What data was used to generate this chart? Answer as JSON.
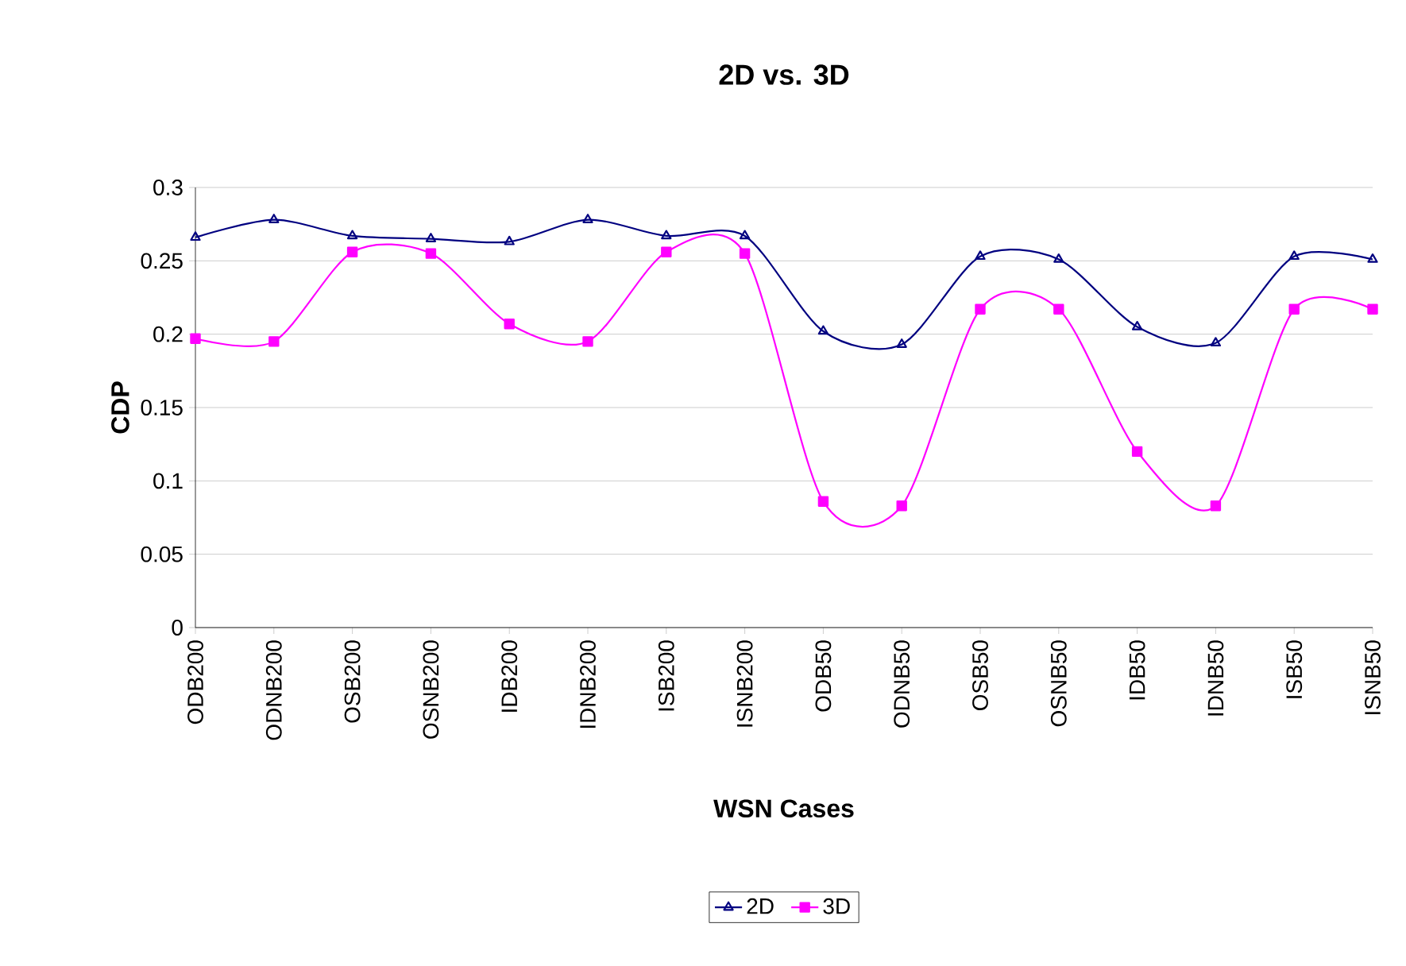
{
  "chart_data": {
    "type": "line",
    "title": "2D vs. 3D",
    "xlabel": "WSN Cases",
    "ylabel": "CDP",
    "categories": [
      "ODB200",
      "ODNB200",
      "OSB200",
      "OSNB200",
      "IDB200",
      "IDNB200",
      "ISB200",
      "ISNB200",
      "ODB50",
      "ODNB50",
      "OSB50",
      "OSNB50",
      "IDB50",
      "IDNB50",
      "ISB50",
      "ISNB50"
    ],
    "series": [
      {
        "name": "2D",
        "color": "#000080",
        "marker": "triangle",
        "values": [
          0.266,
          0.278,
          0.267,
          0.265,
          0.263,
          0.278,
          0.267,
          0.267,
          0.202,
          0.193,
          0.253,
          0.251,
          0.205,
          0.194,
          0.253,
          0.251
        ]
      },
      {
        "name": "3D",
        "color": "#ff00ff",
        "marker": "square",
        "values": [
          0.197,
          0.195,
          0.256,
          0.255,
          0.207,
          0.195,
          0.256,
          0.255,
          0.086,
          0.083,
          0.217,
          0.217,
          0.12,
          0.083,
          0.217,
          0.217
        ]
      }
    ],
    "ylim": [
      0,
      0.3
    ],
    "yticks": [
      0,
      0.05,
      0.1,
      0.15,
      0.2,
      0.25,
      0.3
    ],
    "grid": "y",
    "legend": "bottom",
    "line_style": "solid"
  }
}
